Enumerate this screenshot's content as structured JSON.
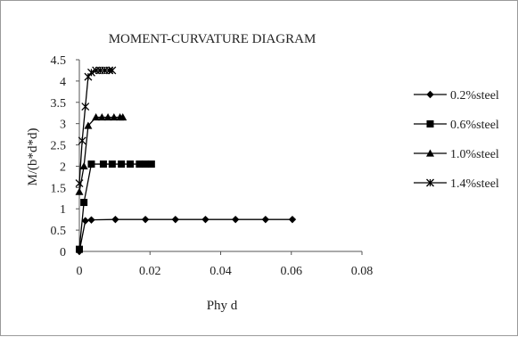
{
  "chart_data": {
    "type": "line",
    "title": "MOMENT-CURVATURE DIAGRAM",
    "xlabel": "Phy d",
    "ylabel": "M/(b*d*d)",
    "xlim": [
      0,
      0.08
    ],
    "ylim": [
      0,
      4.5
    ],
    "x_ticks": [
      "0",
      "0.02",
      "0.04",
      "0.06",
      "0.08"
    ],
    "y_ticks": [
      "0",
      "0.5",
      "1",
      "1.5",
      "2",
      "2.5",
      "3",
      "3.5",
      "4",
      "4.5"
    ],
    "grid": false,
    "legend_position": "right",
    "series": [
      {
        "name": "0.2%steel",
        "marker": "diamond",
        "color": "#000000",
        "x": [
          0,
          0.0017,
          0.0034,
          0.0102,
          0.0187,
          0.0272,
          0.0357,
          0.0442,
          0.0527,
          0.0603
        ],
        "y": [
          0,
          0.72,
          0.74,
          0.75,
          0.75,
          0.75,
          0.75,
          0.75,
          0.75,
          0.75
        ]
      },
      {
        "name": "0.6%steel",
        "marker": "square",
        "color": "#000000",
        "x": [
          0,
          0.0013,
          0.0034,
          0.0068,
          0.0093,
          0.0119,
          0.0144,
          0.017,
          0.0187,
          0.0204
        ],
        "y": [
          0.05,
          1.15,
          2.05,
          2.05,
          2.05,
          2.05,
          2.05,
          2.05,
          2.05,
          2.05
        ]
      },
      {
        "name": "1.0%steel",
        "marker": "triangle",
        "color": "#000000",
        "x": [
          0,
          0.0013,
          0.0025,
          0.0047,
          0.0064,
          0.0081,
          0.0098,
          0.0115,
          0.0123
        ],
        "y": [
          1.4,
          2.0,
          2.95,
          3.15,
          3.15,
          3.15,
          3.15,
          3.15,
          3.15
        ]
      },
      {
        "name": "1.4%steel",
        "marker": "x",
        "color": "#000000",
        "x": [
          0,
          0.0008,
          0.0017,
          0.0025,
          0.0034,
          0.0047,
          0.0059,
          0.0072,
          0.0085,
          0.0093
        ],
        "y": [
          1.6,
          2.6,
          3.4,
          4.1,
          4.2,
          4.25,
          4.25,
          4.25,
          4.25,
          4.25
        ]
      }
    ]
  }
}
